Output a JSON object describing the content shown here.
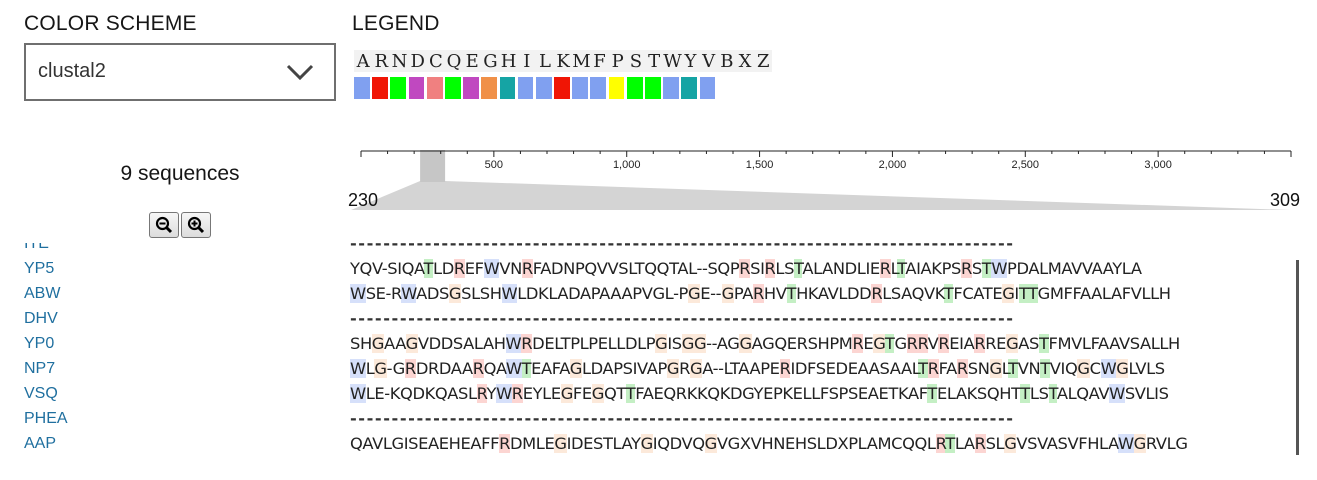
{
  "color_scheme": {
    "label": "COLOR SCHEME",
    "selected": "clustal2"
  },
  "legend": {
    "label": "LEGEND",
    "letters": [
      "A",
      "R",
      "N",
      "D",
      "C",
      "Q",
      "E",
      "G",
      "H",
      "I",
      "L",
      "K",
      "M",
      "F",
      "P",
      "S",
      "T",
      "W",
      "Y",
      "V",
      "B",
      "X",
      "Z"
    ],
    "colors": [
      "#80a0f0",
      "#f01505",
      "#00ff00",
      "#c048c0",
      "#f08080",
      "#00ff00",
      "#c048c0",
      "#f09048",
      "#15a4a4",
      "#80a0f0",
      "#80a0f0",
      "#f01505",
      "#80a0f0",
      "#80a0f0",
      "#ffff00",
      "#00ff00",
      "#00ff00",
      "#80a0f0",
      "#15a4a4",
      "#80a0f0"
    ]
  },
  "sequence_count": "9 sequences",
  "ruler": {
    "ticks": [
      "500",
      "1,000",
      "1,500",
      "2,000",
      "2,500",
      "3,000"
    ],
    "range_start": "230",
    "range_end": "309"
  },
  "names": [
    "ITE",
    "YP5",
    "ABW",
    "DHV",
    "YP0",
    "NP7",
    "VSQ",
    "PHEA",
    "AAP"
  ],
  "sequences": [
    "--------------------------------------------------------------------------------",
    "YQV-SIQATLDREFWVNRFADNPQVVSLTQQTAL--SQPRSIRLSTALANDLIERLTAIAKPSRSTWPDALMAVVAAYLA",
    "WSE-RWADSGSLSHWLDKLADAPAAAPVGL-PGE--GPARHVTHKAVLDDRLSAQVKTFCATEGITTGMFFAALAFVLLH",
    "--------------------------------------------------------------------------------",
    "SHGAAGVDDSALAHWRDELTPLPELLDLPGISGG--AGGAGQERSHPMREGTGRRVREIARREGASTFMVLFAAVSALLH",
    "WLG-GRDRDAARQAWTEAFAGLDAPSIVAPGRGA--LTAAPERIDFSEDEAASAALTRFARSNGLTVNTVIQGCWGLVLS",
    "WLE-KQDKQASLRYWREYLEGFEGQTTFAEQRKKQKDGYEPKELLFSPSEAETKAFTELAKSQHTTLSTALQAVWSVLIS",
    "--------------------------------------------------------------------------------",
    "QAVLGISEAEHEAFFRDMLEGIDESTLAYGIQDVQGVGXVHNEHSLDXPLAMCQQLRTLARSLGVSVASVFHLAWGRVLG"
  ],
  "ruler_max": 3500
}
